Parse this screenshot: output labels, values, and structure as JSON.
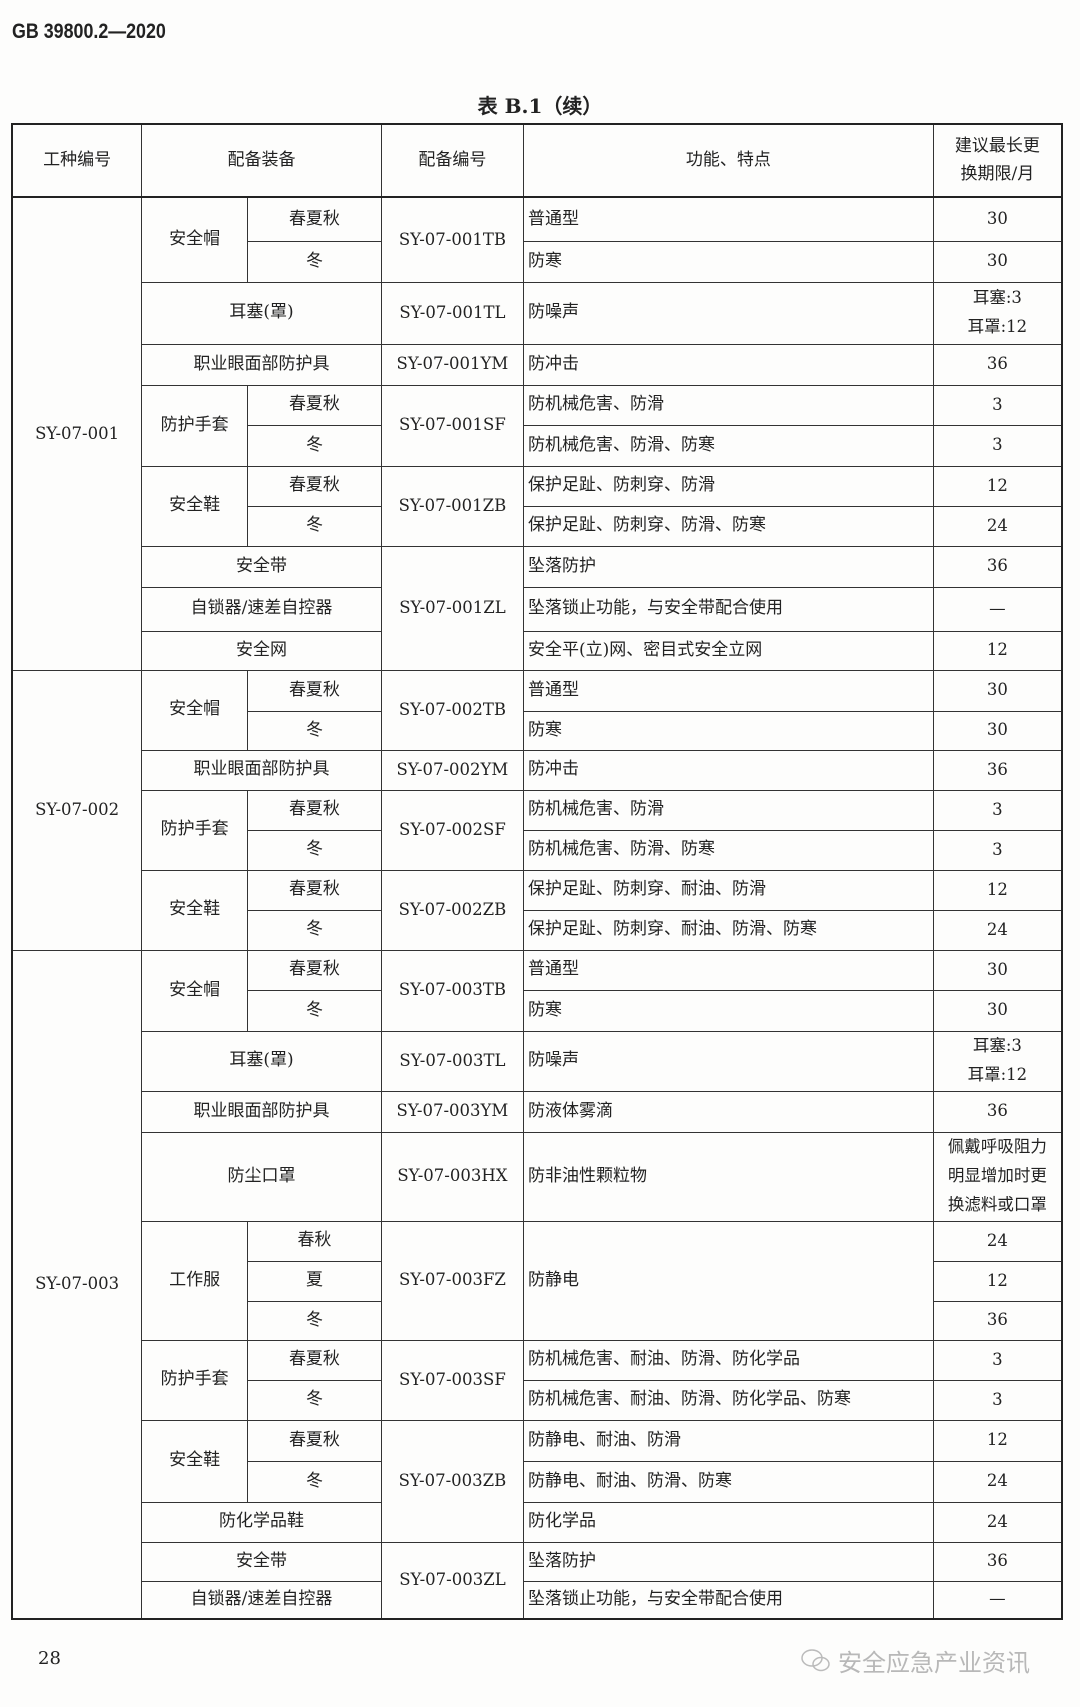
{
  "header": {
    "standard": "GB 39800.2—2020",
    "table_title": "表 B.1（续）"
  },
  "columns": [
    "工种编号",
    "配备装备",
    "配备编号",
    "功能、特点",
    "建议最长更\n换期限/月"
  ],
  "rows": [
    {
      "g": "SY-07-001",
      "eq": "安全帽",
      "s": "春夏秋",
      "c": "SY-07-001TB",
      "f": "普通型",
      "m": "30"
    },
    {
      "s": "冬",
      "f": "防寒",
      "m": "30"
    },
    {
      "eq": "耳塞(罩)",
      "c": "SY-07-001TL",
      "f": "防噪声",
      "m": "耳塞:3\n耳罩:12"
    },
    {
      "eq": "职业眼面部防护具",
      "c": "SY-07-001YM",
      "f": "防冲击",
      "m": "36"
    },
    {
      "eq": "防护手套",
      "s": "春夏秋",
      "c": "SY-07-001SF",
      "f": "防机械危害、防滑",
      "m": "3"
    },
    {
      "s": "冬",
      "f": "防机械危害、防滑、防寒",
      "m": "3"
    },
    {
      "eq": "安全鞋",
      "s": "春夏秋",
      "c": "SY-07-001ZB",
      "f": "保护足趾、防刺穿、防滑",
      "m": "12"
    },
    {
      "s": "冬",
      "f": "保护足趾、防刺穿、防滑、防寒",
      "m": "24"
    },
    {
      "eq": "安全带",
      "c": "SY-07-001ZL",
      "f": "坠落防护",
      "m": "36"
    },
    {
      "eq": "自锁器/速差自控器",
      "f": "坠落锁止功能，与安全带配合使用",
      "m": "—"
    },
    {
      "eq": "安全网",
      "f": "安全平(立)网、密目式安全立网",
      "m": "12"
    },
    {
      "g": "SY-07-002",
      "eq": "安全帽",
      "s": "春夏秋",
      "c": "SY-07-002TB",
      "f": "普通型",
      "m": "30"
    },
    {
      "s": "冬",
      "f": "防寒",
      "m": "30"
    },
    {
      "eq": "职业眼面部防护具",
      "c": "SY-07-002YM",
      "f": "防冲击",
      "m": "36"
    },
    {
      "eq": "防护手套",
      "s": "春夏秋",
      "c": "SY-07-002SF",
      "f": "防机械危害、防滑",
      "m": "3"
    },
    {
      "s": "冬",
      "f": "防机械危害、防滑、防寒",
      "m": "3"
    },
    {
      "eq": "安全鞋",
      "s": "春夏秋",
      "c": "SY-07-002ZB",
      "f": "保护足趾、防刺穿、耐油、防滑",
      "m": "12"
    },
    {
      "s": "冬",
      "f": "保护足趾、防刺穿、耐油、防滑、防寒",
      "m": "24"
    },
    {
      "g": "SY-07-003",
      "eq": "安全帽",
      "s": "春夏秋",
      "c": "SY-07-003TB",
      "f": "普通型",
      "m": "30"
    },
    {
      "s": "冬",
      "f": "防寒",
      "m": "30"
    },
    {
      "eq": "耳塞(罩)",
      "c": "SY-07-003TL",
      "f": "防噪声",
      "m": "耳塞:3\n耳罩:12"
    },
    {
      "eq": "职业眼面部防护具",
      "c": "SY-07-003YM",
      "f": "防液体雾滴",
      "m": "36"
    },
    {
      "eq": "防尘口罩",
      "c": "SY-07-003HX",
      "f": "防非油性颗粒物",
      "m": "佩戴呼吸阻力\n明显增加时更\n换滤料或口罩"
    },
    {
      "eq": "工作服",
      "s": "春秋",
      "c": "SY-07-003FZ",
      "f": "防静电",
      "m": "24"
    },
    {
      "s": "夏",
      "m": "12"
    },
    {
      "s": "冬",
      "m": "36"
    },
    {
      "eq": "防护手套",
      "s": "春夏秋",
      "c": "SY-07-003SF",
      "f": "防机械危害、耐油、防滑、防化学品",
      "m": "3"
    },
    {
      "s": "冬",
      "f": "防机械危害、耐油、防滑、防化学品、防寒",
      "m": "3"
    },
    {
      "eq": "安全鞋",
      "s": "春夏秋",
      "c": "SY-07-003ZB",
      "f": "防静电、耐油、防滑",
      "m": "12"
    },
    {
      "s": "冬",
      "f": "防静电、耐油、防滑、防寒",
      "m": "24"
    },
    {
      "eq": "防化学品鞋",
      "f": "防化学品",
      "m": "24"
    },
    {
      "eq": "安全带",
      "c": "SY-07-003ZL",
      "f": "坠落防护",
      "m": "36"
    },
    {
      "eq": "自锁器/速差自控器",
      "f": "坠落锁止功能，与安全带配合使用",
      "m": "—"
    }
  ],
  "footer": {
    "page_number": "28",
    "watermark": "安全应急产业资讯"
  }
}
